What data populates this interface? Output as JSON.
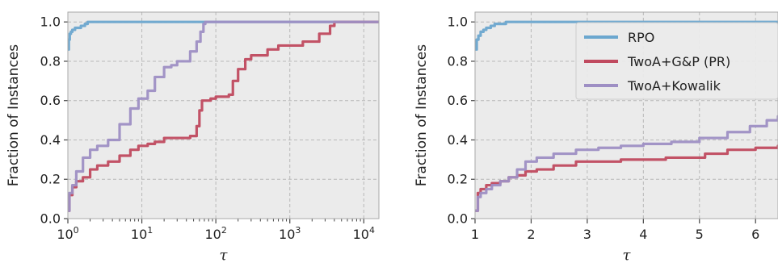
{
  "colors": {
    "RPO": "#6ba7cf",
    "TwoA+G&P (PR)": "#c04a5f",
    "TwoA+Kowalik": "#9e8fc4",
    "panel_bg": "#ebebeb",
    "grid": "#b8b8b8"
  },
  "chart_data": [
    {
      "type": "line",
      "xscale": "log",
      "xlim": [
        1,
        16000
      ],
      "ylim": [
        0,
        1.05
      ],
      "xlabel": "τ",
      "ylabel": "Fraction of Instances",
      "xticks": [
        1,
        10,
        100,
        1000,
        10000
      ],
      "xtick_labels": [
        {
          "base": "10",
          "exp": "0"
        },
        {
          "base": "10",
          "exp": "1"
        },
        {
          "base": "10",
          "exp": "2"
        },
        {
          "base": "10",
          "exp": "3"
        },
        {
          "base": "10",
          "exp": "4"
        }
      ],
      "yticks": [
        0.0,
        0.2,
        0.4,
        0.6,
        0.8,
        1.0
      ],
      "ytick_labels": [
        "0.0",
        "0.2",
        "0.4",
        "0.6",
        "0.8",
        "1.0"
      ],
      "grid": true,
      "series": [
        {
          "name": "RPO",
          "x": [
            1,
            1.03,
            1.06,
            1.1,
            1.15,
            1.25,
            1.35,
            1.5,
            1.7,
            1.85,
            2.0,
            16000
          ],
          "y": [
            0.86,
            0.91,
            0.94,
            0.95,
            0.96,
            0.97,
            0.97,
            0.98,
            0.99,
            1.0,
            1.0,
            1.0
          ]
        },
        {
          "name": "TwoA+G&P (PR)",
          "x": [
            1,
            1.05,
            1.15,
            1.3,
            1.6,
            2.0,
            2.5,
            3.5,
            5,
            7,
            9,
            12,
            15,
            20,
            28,
            45,
            55,
            60,
            65,
            70,
            75,
            85,
            100,
            150,
            170,
            200,
            250,
            300,
            500,
            700,
            1000,
            1500,
            2500,
            3500,
            4000,
            16000
          ],
          "y": [
            0.04,
            0.12,
            0.16,
            0.19,
            0.21,
            0.25,
            0.27,
            0.29,
            0.32,
            0.35,
            0.37,
            0.38,
            0.39,
            0.41,
            0.41,
            0.42,
            0.47,
            0.55,
            0.6,
            0.6,
            0.6,
            0.61,
            0.62,
            0.63,
            0.7,
            0.76,
            0.81,
            0.83,
            0.86,
            0.88,
            0.88,
            0.9,
            0.94,
            0.98,
            1.0,
            1.0
          ]
        },
        {
          "name": "TwoA+Kowalik",
          "x": [
            1,
            1.05,
            1.15,
            1.3,
            1.6,
            2.0,
            2.5,
            3.5,
            5,
            7,
            9,
            12,
            15,
            20,
            25,
            30,
            45,
            55,
            62,
            68,
            72,
            16000
          ],
          "y": [
            0.04,
            0.13,
            0.17,
            0.24,
            0.31,
            0.35,
            0.37,
            0.4,
            0.48,
            0.56,
            0.61,
            0.65,
            0.72,
            0.77,
            0.78,
            0.8,
            0.85,
            0.9,
            0.95,
            0.99,
            1.0,
            1.0
          ]
        }
      ]
    },
    {
      "type": "line",
      "xscale": "linear",
      "xlim": [
        1,
        6.4
      ],
      "ylim": [
        0,
        1.05
      ],
      "xlabel": "τ",
      "ylabel": "Fraction of Instances",
      "xticks": [
        1,
        2,
        3,
        4,
        5,
        6
      ],
      "xtick_labels": [
        "1",
        "2",
        "3",
        "4",
        "5",
        "6"
      ],
      "yticks": [
        0.0,
        0.2,
        0.4,
        0.6,
        0.8,
        1.0
      ],
      "ytick_labels": [
        "0.0",
        "0.2",
        "0.4",
        "0.6",
        "0.8",
        "1.0"
      ],
      "grid": true,
      "legend": {
        "position": "upper-right",
        "entries": [
          "RPO",
          "TwoA+G&P (PR)",
          "TwoA+Kowalik"
        ]
      },
      "series": [
        {
          "name": "RPO",
          "x": [
            1,
            1.03,
            1.06,
            1.1,
            1.15,
            1.2,
            1.28,
            1.35,
            1.45,
            1.55,
            6.4
          ],
          "y": [
            0.86,
            0.91,
            0.93,
            0.95,
            0.96,
            0.97,
            0.98,
            0.99,
            0.99,
            1.0,
            1.0
          ]
        },
        {
          "name": "TwoA+G&P (PR)",
          "x": [
            1,
            1.05,
            1.1,
            1.2,
            1.3,
            1.45,
            1.6,
            1.75,
            1.9,
            2.1,
            2.4,
            2.8,
            3.6,
            4.4,
            5.1,
            5.5,
            6.0,
            6.4
          ],
          "y": [
            0.04,
            0.13,
            0.15,
            0.17,
            0.18,
            0.19,
            0.21,
            0.22,
            0.24,
            0.25,
            0.27,
            0.29,
            0.3,
            0.31,
            0.33,
            0.35,
            0.36,
            0.37
          ]
        },
        {
          "name": "TwoA+Kowalik",
          "x": [
            1,
            1.05,
            1.1,
            1.2,
            1.3,
            1.45,
            1.6,
            1.75,
            1.9,
            2.1,
            2.4,
            2.8,
            3.2,
            3.6,
            4.0,
            4.5,
            5.0,
            5.5,
            5.9,
            6.2,
            6.4
          ],
          "y": [
            0.04,
            0.11,
            0.13,
            0.15,
            0.17,
            0.19,
            0.21,
            0.25,
            0.29,
            0.31,
            0.33,
            0.35,
            0.36,
            0.37,
            0.38,
            0.39,
            0.41,
            0.44,
            0.47,
            0.5,
            0.52
          ]
        }
      ]
    }
  ]
}
